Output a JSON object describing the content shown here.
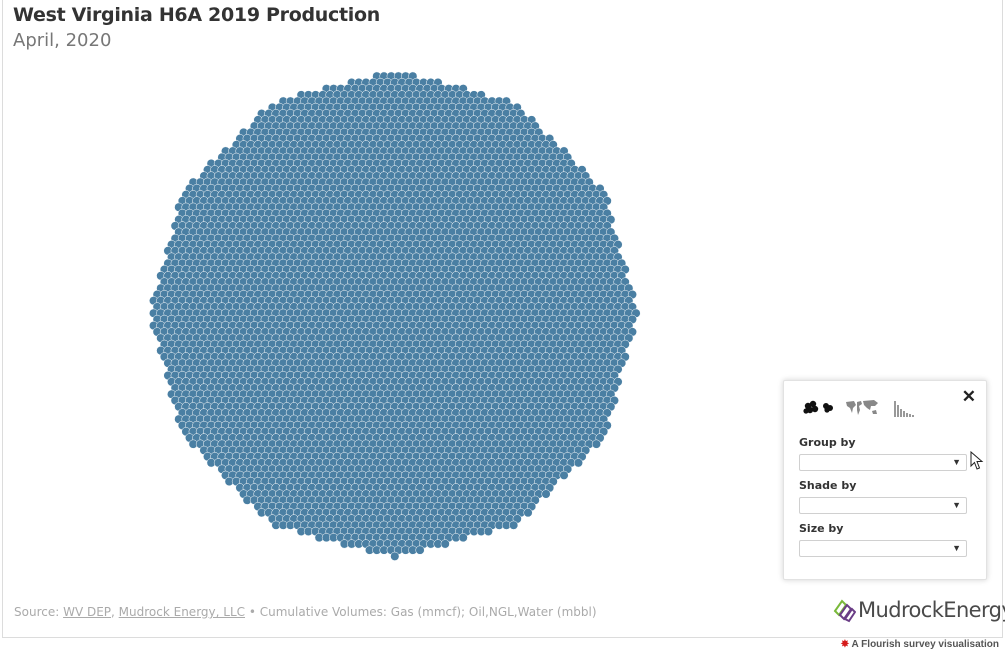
{
  "header": {
    "title": "West Virginia H6A 2019 Production",
    "subtitle": "April, 2020"
  },
  "controls": {
    "close_label": "✕",
    "views": [
      {
        "name": "bubbles-view",
        "icon": "bubbles-icon"
      },
      {
        "name": "map-view",
        "icon": "world-map-icon"
      },
      {
        "name": "histogram-view",
        "icon": "histogram-icon"
      }
    ],
    "group_by_label": "Group by",
    "group_by_value": "",
    "shade_by_label": "Shade by",
    "shade_by_value": "",
    "size_by_label": "Size by",
    "size_by_value": ""
  },
  "footer": {
    "source_prefix": "Source: ",
    "link1": "WV DEP",
    "separator": ", ",
    "link2": "Mudrock Energy, LLC",
    "suffix": " • Cumulative Volumes: Gas (mmcf); Oil,NGL,Water (mbbl)"
  },
  "logo": {
    "text": "MudrockEnergy"
  },
  "flourish": {
    "text": "A Flourish survey visualisation"
  },
  "colors": {
    "dot": "#4a7fa3",
    "logo_green": "#79b93a",
    "logo_purple": "#6a3d86"
  }
}
